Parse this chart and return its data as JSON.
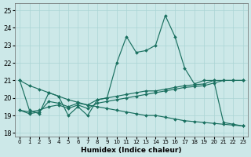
{
  "background_color": "#cce8e8",
  "grid_color": "#aad4d4",
  "line_color": "#1a7060",
  "xlim": [
    -0.5,
    23.5
  ],
  "ylim": [
    17.8,
    25.4
  ],
  "yticks": [
    18,
    19,
    20,
    21,
    22,
    23,
    24,
    25
  ],
  "xticks": [
    0,
    1,
    2,
    3,
    4,
    5,
    6,
    7,
    8,
    9,
    10,
    11,
    12,
    13,
    14,
    15,
    16,
    17,
    18,
    19,
    20,
    21,
    22,
    23
  ],
  "xlabel": "Humidex (Indice chaleur)",
  "line1": [
    21.0,
    19.3,
    19.1,
    20.3,
    20.1,
    19.0,
    19.5,
    19.0,
    19.9,
    20.0,
    22.0,
    23.5,
    22.6,
    22.7,
    23.0,
    24.7,
    23.5,
    21.7,
    20.8,
    21.0,
    21.0,
    18.6,
    18.5,
    18.4
  ],
  "line2": [
    19.3,
    19.1,
    19.2,
    19.8,
    19.7,
    19.5,
    19.7,
    19.6,
    19.9,
    20.0,
    20.1,
    20.2,
    20.3,
    20.4,
    20.4,
    20.5,
    20.6,
    20.7,
    20.75,
    20.8,
    21.0,
    21.0,
    21.0,
    21.0
  ],
  "line3": [
    19.3,
    19.2,
    19.3,
    19.5,
    19.6,
    19.4,
    19.6,
    19.4,
    19.7,
    19.8,
    19.9,
    20.0,
    20.1,
    20.2,
    20.3,
    20.4,
    20.5,
    20.6,
    20.65,
    20.7,
    20.85,
    21.0,
    21.0,
    21.0
  ],
  "line4": [
    21.0,
    20.7,
    20.5,
    20.3,
    20.1,
    19.9,
    19.75,
    19.6,
    19.5,
    19.4,
    19.3,
    19.2,
    19.1,
    19.0,
    19.0,
    18.9,
    18.8,
    18.7,
    18.65,
    18.6,
    18.55,
    18.5,
    18.45,
    18.4
  ]
}
